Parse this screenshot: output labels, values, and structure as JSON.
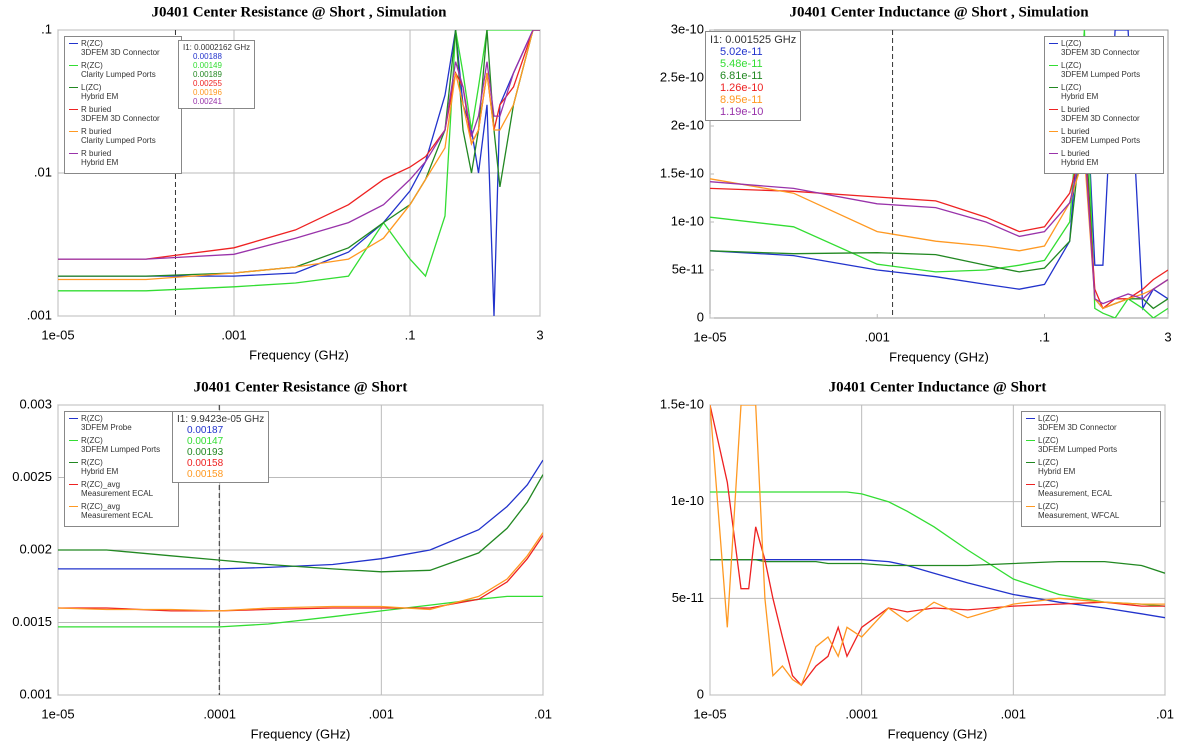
{
  "chart_data": [
    {
      "type": "line",
      "title": "J0401 Center Resistance @ Short , Simulation",
      "xlabel": "Frequency (GHz)",
      "xscale": "log",
      "yscale": "log",
      "grid": true,
      "legend": "upper left",
      "xlim": [
        1e-05,
        3
      ],
      "ylim": [
        0.001,
        0.1
      ],
      "xticks": [
        {
          "value": 1e-05,
          "label": "1e-05"
        },
        {
          "value": 0.001,
          "label": ".001"
        },
        {
          "value": 0.1,
          "label": ".1"
        },
        3
      ],
      "yticks": [
        {
          "value": 0.001,
          "label": ".001"
        },
        {
          "value": 0.01,
          "label": ".01"
        },
        {
          "value": 0.1,
          "label": ".1"
        }
      ],
      "x": [
        1e-05,
        0.0001,
        0.001,
        0.005,
        0.02,
        0.05,
        0.1,
        0.15,
        0.25,
        0.33,
        0.4,
        0.5,
        0.6,
        0.75,
        0.9,
        1.05,
        1.5,
        2.5,
        3
      ],
      "series": [
        {
          "name": "R(ZC)\n3DFEM 3D Connector",
          "color": "#2233cc",
          "values": [
            0.0019,
            0.0019,
            0.0019,
            0.002,
            0.0028,
            0.0045,
            0.0075,
            0.012,
            0.035,
            0.1,
            0.03,
            0.02,
            0.01,
            0.03,
            0.001,
            0.03,
            0.05,
            0.1,
            0.1
          ]
        },
        {
          "name": "R(ZC)\nClarity Lumped Ports",
          "color": "#33dd33",
          "values": [
            0.0015,
            0.0015,
            0.0016,
            0.0017,
            0.0019,
            0.0045,
            0.0025,
            0.0019,
            0.005,
            0.1,
            0.05,
            0.02,
            0.04,
            0.1,
            0.1,
            0.1,
            0.1,
            0.1,
            0.1
          ]
        },
        {
          "name": "L(ZC)\nHybrid EM",
          "color": "#228822",
          "values": [
            0.0019,
            0.0019,
            0.002,
            0.0022,
            0.003,
            0.0045,
            0.006,
            0.009,
            0.02,
            0.1,
            0.02,
            0.01,
            0.02,
            0.1,
            0.02,
            0.008,
            0.03,
            0.1,
            0.1
          ]
        },
        {
          "name": "R buried\n3DFEM 3D Connector",
          "color": "#ee2222",
          "values": [
            0.0025,
            0.0025,
            0.003,
            0.004,
            0.006,
            0.009,
            0.011,
            0.013,
            0.02,
            0.05,
            0.04,
            0.016,
            0.02,
            0.05,
            0.02,
            0.03,
            0.04,
            0.1,
            0.1
          ]
        },
        {
          "name": "R buried\nClarity Lumped Ports",
          "color": "#ff9922",
          "values": [
            0.0018,
            0.0018,
            0.002,
            0.0022,
            0.0025,
            0.0035,
            0.006,
            0.009,
            0.015,
            0.05,
            0.03,
            0.016,
            0.02,
            0.05,
            0.02,
            0.02,
            0.03,
            0.1,
            0.1
          ]
        },
        {
          "name": "R buried\nHybrid EM",
          "color": "#9933aa",
          "values": [
            0.0025,
            0.0025,
            0.0027,
            0.0035,
            0.0045,
            0.006,
            0.009,
            0.012,
            0.02,
            0.06,
            0.04,
            0.018,
            0.025,
            0.06,
            0.025,
            0.025,
            0.05,
            0.1,
            0.1
          ]
        }
      ],
      "marker": {
        "label": "I1: 0.0002162 GHz",
        "x": 0.0002162,
        "values": [
          0.00188,
          0.00149,
          0.00189,
          0.00255,
          0.00196,
          0.00241
        ]
      }
    },
    {
      "type": "line",
      "title": "J0401 Center Inductance @ Short , Simulation",
      "xlabel": "Frequency (GHz)",
      "xscale": "log",
      "yscale": "linear",
      "grid": false,
      "legend": "upper right",
      "xlim": [
        1e-05,
        3
      ],
      "ylim": [
        0,
        3e-10
      ],
      "xticks": [
        {
          "value": 1e-05,
          "label": "1e-05"
        },
        {
          "value": 0.001,
          "label": ".001"
        },
        {
          "value": 0.1,
          "label": ".1"
        },
        3
      ],
      "yticks": [
        0,
        5e-11,
        1e-10,
        1.5e-10,
        2e-10,
        2.5e-10,
        3e-10
      ],
      "x": [
        1e-05,
        0.0001,
        0.001,
        0.005,
        0.02,
        0.05,
        0.1,
        0.2,
        0.3,
        0.4,
        0.5,
        0.7,
        1,
        1.5,
        2,
        3
      ],
      "series": [
        {
          "name": "L(ZC)\n3DFEM 3D Connector",
          "color": "#2233cc",
          "values": [
            7e-11,
            6.5e-11,
            5e-11,
            4.3e-11,
            3.5e-11,
            3e-11,
            3.5e-11,
            8e-11,
            2.8e-10,
            5.5e-11,
            5.5e-11,
            3e-10,
            3e-10,
            1e-11,
            3e-11,
            2e-11
          ]
        },
        {
          "name": "L(ZC)\n3DFEM Lumped Ports",
          "color": "#33dd33",
          "values": [
            1.05e-10,
            9.5e-11,
            5.6e-11,
            4.8e-11,
            5e-11,
            5.5e-11,
            6e-11,
            1e-10,
            3e-10,
            1e-11,
            5e-12,
            0,
            2e-11,
            1e-11,
            0,
            1e-11
          ]
        },
        {
          "name": "L(ZC)\nHybrid EM",
          "color": "#228822",
          "values": [
            7e-11,
            6.7e-11,
            6.8e-11,
            6.6e-11,
            5.5e-11,
            4.8e-11,
            5.2e-11,
            8e-11,
            2.2e-10,
            2e-11,
            1e-11,
            1.5e-11,
            2e-11,
            2e-11,
            1e-11,
            2e-11
          ]
        },
        {
          "name": "L buried\n3DFEM 3D Connector",
          "color": "#ee2222",
          "values": [
            1.35e-10,
            1.32e-10,
            1.26e-10,
            1.22e-10,
            1.05e-10,
            9e-11,
            9.5e-11,
            1.3e-10,
            1.9e-10,
            3e-11,
            1e-11,
            2e-11,
            2e-11,
            3e-11,
            4e-11,
            5e-11
          ]
        },
        {
          "name": "L buried\n3DFEM Lumped Ports",
          "color": "#ff9922",
          "values": [
            1.45e-10,
            1.3e-10,
            9e-11,
            8e-11,
            7.5e-11,
            7e-11,
            7.5e-11,
            1.2e-10,
            1.7e-10,
            2e-11,
            1e-11,
            1.5e-11,
            2e-11,
            2.5e-11,
            3e-11,
            4e-11
          ]
        },
        {
          "name": "L buried\nHybrid EM",
          "color": "#9933aa",
          "values": [
            1.42e-10,
            1.35e-10,
            1.19e-10,
            1.15e-10,
            1e-10,
            8.5e-11,
            9e-11,
            1.2e-10,
            1.85e-10,
            2e-11,
            1.5e-11,
            2e-11,
            2.5e-11,
            2e-11,
            3e-11,
            4e-11
          ]
        }
      ],
      "marker": {
        "label": "I1: 0.001525 GHz",
        "x": 0.001525,
        "values": [
          5.02e-11,
          5.48e-11,
          6.81e-11,
          1.26e-10,
          8.95e-11,
          1.19e-10
        ]
      }
    },
    {
      "type": "line",
      "title": "J0401 Center Resistance @ Short",
      "xlabel": "Frequency (GHz)",
      "xscale": "log",
      "yscale": "linear",
      "grid": true,
      "legend": "upper left",
      "xlim": [
        1e-05,
        0.01
      ],
      "ylim": [
        0.001,
        0.003
      ],
      "xticks": [
        {
          "value": 1e-05,
          "label": "1e-05"
        },
        {
          "value": 0.0001,
          "label": ".0001"
        },
        {
          "value": 0.001,
          "label": ".001"
        },
        {
          "value": 0.01,
          "label": ".01"
        }
      ],
      "yticks": [
        0.001,
        0.0015,
        0.002,
        0.0025,
        0.003
      ],
      "x": [
        1e-05,
        2e-05,
        5e-05,
        0.0001,
        0.0002,
        0.0005,
        0.001,
        0.002,
        0.004,
        0.006,
        0.008,
        0.01
      ],
      "series": [
        {
          "name": "R(ZC)\n3DFEM Probe",
          "color": "#2233cc",
          "values": [
            0.00187,
            0.00187,
            0.00187,
            0.00187,
            0.00188,
            0.0019,
            0.00194,
            0.002,
            0.00214,
            0.0023,
            0.00245,
            0.00262
          ]
        },
        {
          "name": "R(ZC)\n3DFEM Lumped Ports",
          "color": "#33dd33",
          "values": [
            0.00147,
            0.00147,
            0.00147,
            0.00147,
            0.00149,
            0.00154,
            0.00158,
            0.00162,
            0.00166,
            0.00168,
            0.00168,
            0.00168
          ]
        },
        {
          "name": "R(ZC)\nHybrid EM",
          "color": "#228822",
          "values": [
            0.002,
            0.002,
            0.00196,
            0.00193,
            0.0019,
            0.00187,
            0.00185,
            0.00186,
            0.00198,
            0.00215,
            0.00233,
            0.00252
          ]
        },
        {
          "name": "R(ZC)_avg\nMeasurement ECAL",
          "color": "#ee2222",
          "values": [
            0.0016,
            0.0016,
            0.00158,
            0.00158,
            0.00159,
            0.0016,
            0.0016,
            0.0016,
            0.00166,
            0.00178,
            0.00194,
            0.0021
          ]
        },
        {
          "name": "R(ZC)_avg\nMeasurement ECAL",
          "color": "#ff9922",
          "values": [
            0.0016,
            0.00159,
            0.00159,
            0.00158,
            0.0016,
            0.00161,
            0.00161,
            0.00159,
            0.00168,
            0.0018,
            0.00196,
            0.00212
          ]
        }
      ],
      "marker": {
        "label": "I1: 9.9423e-05 GHz",
        "x": 9.9423e-05,
        "values": [
          0.00187,
          0.00147,
          0.00193,
          0.00158,
          0.00158
        ]
      }
    },
    {
      "type": "line",
      "title": "J0401 Center Inductance @ Short",
      "xlabel": "Frequency (GHz)",
      "xscale": "log",
      "yscale": "linear",
      "grid": true,
      "legend": "upper right",
      "xlim": [
        1e-05,
        0.01
      ],
      "ylim": [
        0,
        1.5e-10
      ],
      "xticks": [
        {
          "value": 1e-05,
          "label": "1e-05"
        },
        {
          "value": 0.0001,
          "label": ".0001"
        },
        {
          "value": 0.001,
          "label": ".001"
        },
        {
          "value": 0.01,
          "label": ".01"
        }
      ],
      "yticks": [
        0,
        5e-11,
        1e-10,
        1.5e-10
      ],
      "x": [
        1e-05,
        1.3e-05,
        1.6e-05,
        1.8e-05,
        2e-05,
        2.3e-05,
        2.6e-05,
        3e-05,
        3.5e-05,
        4e-05,
        5e-05,
        6e-05,
        7e-05,
        8e-05,
        0.0001,
        0.00015,
        0.0002,
        0.0003,
        0.0005,
        0.001,
        0.002,
        0.004,
        0.007,
        0.01
      ],
      "series": [
        {
          "name": "L(ZC)\n3DFEM 3D Connector",
          "color": "#2233cc",
          "values": [
            7e-11,
            7e-11,
            7e-11,
            7e-11,
            7e-11,
            7e-11,
            7e-11,
            7e-11,
            7e-11,
            7e-11,
            7e-11,
            7e-11,
            7e-11,
            7e-11,
            7e-11,
            6.9e-11,
            6.7e-11,
            6.3e-11,
            5.8e-11,
            5.2e-11,
            4.8e-11,
            4.5e-11,
            4.2e-11,
            4e-11
          ]
        },
        {
          "name": "L(ZC)\n3DFEM Lumped Ports",
          "color": "#33dd33",
          "values": [
            1.05e-10,
            1.05e-10,
            1.05e-10,
            1.05e-10,
            1.05e-10,
            1.05e-10,
            1.05e-10,
            1.05e-10,
            1.05e-10,
            1.05e-10,
            1.05e-10,
            1.05e-10,
            1.05e-10,
            1.05e-10,
            1.04e-10,
            1e-10,
            9.5e-11,
            8.7e-11,
            7.5e-11,
            6e-11,
            5.2e-11,
            4.8e-11,
            4.7e-11,
            4.6e-11
          ]
        },
        {
          "name": "L(ZC)\nHybrid EM",
          "color": "#228822",
          "values": [
            7e-11,
            7e-11,
            7e-11,
            7e-11,
            7e-11,
            6.9e-11,
            6.9e-11,
            6.9e-11,
            6.9e-11,
            6.9e-11,
            6.9e-11,
            6.8e-11,
            6.8e-11,
            6.8e-11,
            6.8e-11,
            6.7e-11,
            6.7e-11,
            6.7e-11,
            6.7e-11,
            6.8e-11,
            6.9e-11,
            6.9e-11,
            6.7e-11,
            6.3e-11
          ]
        },
        {
          "name": "L(ZC)\nMeasurement, ECAL",
          "color": "#ee2222",
          "values": [
            1.5e-10,
            1.1e-10,
            5.5e-11,
            5.5e-11,
            8.7e-11,
            7e-11,
            5e-11,
            3e-11,
            1e-11,
            5e-12,
            1.5e-11,
            2e-11,
            3.5e-11,
            2e-11,
            3.5e-11,
            4.5e-11,
            4.3e-11,
            4.5e-11,
            4.4e-11,
            4.6e-11,
            4.7e-11,
            4.8e-11,
            4.6e-11,
            4.6e-11
          ]
        },
        {
          "name": "L(ZC)\nMeasurement, WFCAL",
          "color": "#ff9922",
          "values": [
            1.5e-10,
            3.5e-11,
            1.5e-10,
            1.5e-10,
            1.5e-10,
            5e-11,
            1e-11,
            1.5e-11,
            8e-12,
            5e-12,
            2.5e-11,
            3e-11,
            2e-11,
            3.5e-11,
            3e-11,
            4.5e-11,
            3.8e-11,
            4.8e-11,
            4e-11,
            4.7e-11,
            5e-11,
            4.8e-11,
            4.7e-11,
            4.7e-11
          ]
        }
      ]
    }
  ]
}
